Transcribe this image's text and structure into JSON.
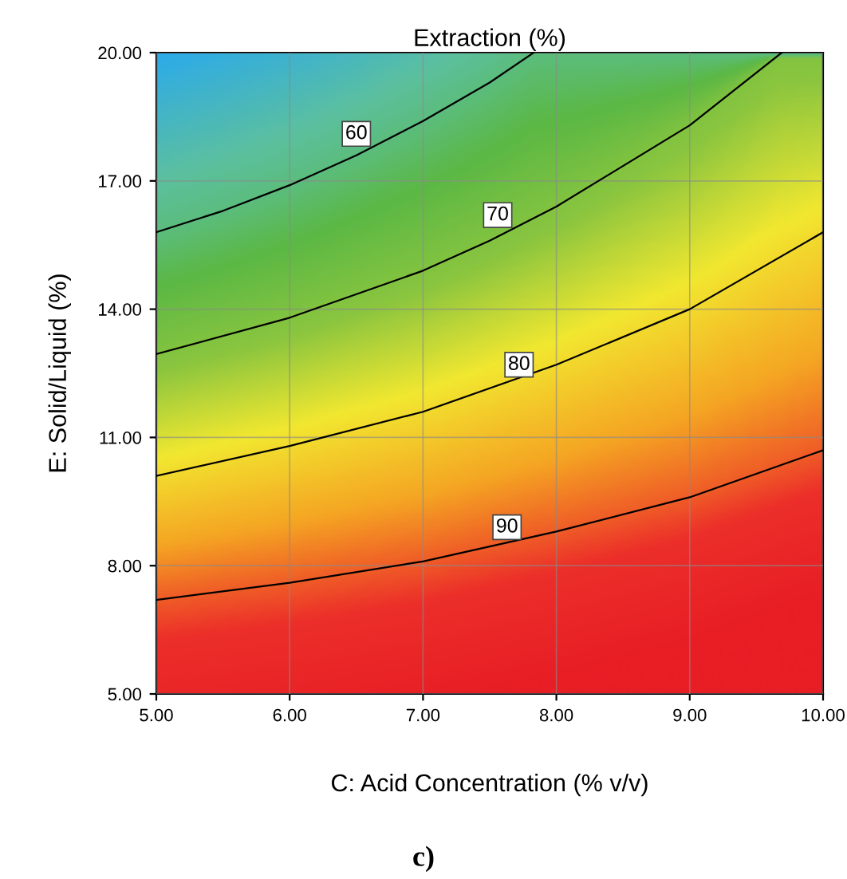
{
  "chart_data": {
    "type": "line",
    "title": "Extraction (%)",
    "xlabel": "C: Acid Concentration (% v/v)",
    "ylabel": "E: Solid/Liquid (%)",
    "series": [
      {
        "color": "#000000",
        "x": [
          5,
          5.5,
          6,
          6.5,
          7,
          7.5,
          7.83
        ],
        "values": [
          15.8,
          16.3,
          16.9,
          17.6,
          18.4,
          19.3,
          20
        ]
      },
      {
        "color": "#000000",
        "x": [
          5,
          6,
          7,
          7.5,
          8,
          9,
          9.69
        ],
        "values": [
          12.95,
          13.8,
          14.9,
          15.6,
          16.4,
          18.3,
          20
        ]
      },
      {
        "color": "#000000",
        "x": [
          5,
          6,
          7,
          8,
          9,
          10
        ],
        "values": [
          10.1,
          10.8,
          11.6,
          12.7,
          14.0,
          15.8
        ]
      },
      {
        "color": "#000000",
        "x": [
          5,
          6,
          7,
          8,
          9,
          10
        ],
        "values": [
          7.2,
          7.6,
          8.1,
          8.8,
          9.6,
          10.7
        ]
      }
    ],
    "annotations": [
      {
        "text": "60",
        "x": 6.5,
        "y": 18.1
      },
      {
        "text": "70",
        "x": 7.56,
        "y": 16.2
      },
      {
        "text": "80",
        "x": 7.72,
        "y": 12.7
      },
      {
        "text": "90",
        "x": 7.63,
        "y": 8.9
      },
      "c)"
    ],
    "xlim": [
      5,
      10
    ],
    "ylim": [
      5,
      20
    ],
    "xticks": [
      {
        "value": 5,
        "label": "5.00"
      },
      {
        "value": 6,
        "label": "6.00"
      },
      {
        "value": 7,
        "label": "7.00"
      },
      {
        "value": 8,
        "label": "8.00"
      },
      {
        "value": 9,
        "label": "9.00"
      },
      {
        "value": 10,
        "label": "10.00"
      }
    ],
    "yticks": [
      {
        "value": 5,
        "label": "5.00"
      },
      {
        "value": 8,
        "label": "8.00"
      },
      {
        "value": 11,
        "label": "11.00"
      },
      {
        "value": 14,
        "label": "14.00"
      },
      {
        "value": 17,
        "label": "17.00"
      },
      {
        "value": 20,
        "label": "20.00"
      }
    ],
    "grid": true,
    "line_style": "solid",
    "marker": "none"
  }
}
